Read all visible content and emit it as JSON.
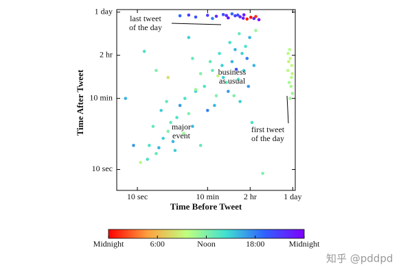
{
  "chart_data": {
    "type": "scatter",
    "log_x": true,
    "log_y": true,
    "xlabel": "Time Before Tweet",
    "ylabel": "Time After Tweet",
    "xlim": [
      3,
      100000
    ],
    "ylim": [
      3,
      100000
    ],
    "xticks": [
      {
        "value": 10,
        "label": "10 sec"
      },
      {
        "value": 600,
        "label": "10 min"
      },
      {
        "value": 7200,
        "label": "2 hr"
      },
      {
        "value": 86400,
        "label": "1 day"
      }
    ],
    "yticks": [
      {
        "value": 10,
        "label": "10 sec"
      },
      {
        "value": 600,
        "label": "10 min"
      },
      {
        "value": 7200,
        "label": "2 hr"
      },
      {
        "value": 86400,
        "label": "1 day"
      }
    ],
    "colormap": [
      "#ff0000",
      "#ffa040",
      "#c0ff80",
      "#40e0d0",
      "#3060ff",
      "#7f00ff"
    ],
    "clim": [
      0,
      24
    ],
    "cticks": [
      {
        "value": 0,
        "label": "Midnight"
      },
      {
        "value": 6,
        "label": "6:00"
      },
      {
        "value": 12,
        "label": "Noon"
      },
      {
        "value": 18,
        "label": "18:00"
      },
      {
        "value": 24,
        "label": "Midnight"
      }
    ],
    "annotations": [
      {
        "lines": [
          "last tweet",
          "of the day"
        ]
      },
      {
        "lines": [
          "business",
          "as usual"
        ]
      },
      {
        "lines": [
          "major",
          "event"
        ]
      },
      {
        "lines": [
          "first tweet",
          "of the day"
        ]
      }
    ],
    "series": [
      {
        "x": [
          20,
          30,
          45,
          60,
          80,
          25,
          100,
          150,
          40,
          70,
          120,
          200,
          18,
          35,
          55,
          90,
          160,
          250,
          12,
          300,
          500,
          800,
          1500,
          2500,
          3600,
          1000,
          2000,
          5000,
          700,
          1200,
          3000,
          6000,
          400,
          4000,
          1800,
          900,
          2200,
          6500,
          300,
          1400,
          3200,
          5500,
          250,
          7000,
          600,
          2800,
          4500,
          1100,
          3800,
          9000,
          8,
          15,
          30,
          200,
          8000,
          5,
          10000,
          60,
          400,
          15000,
          120,
          300,
          600,
          1000,
          1500,
          2000,
          3000,
          4000,
          5000,
          6000,
          7500,
          9000,
          12000,
          2500,
          800,
          1800,
          3500,
          4800,
          10000,
          200,
          65000,
          70000,
          75000,
          80000,
          85000,
          68000,
          72000,
          78000,
          82000,
          74000,
          66000,
          84000
        ],
        "y": [
          40,
          25,
          60,
          90,
          50,
          120,
          200,
          80,
          300,
          150,
          400,
          250,
          18,
          35,
          500,
          30,
          600,
          120,
          15,
          900,
          1200,
          3000,
          2000,
          5000,
          1800,
          700,
          900,
          3000,
          5000,
          8000,
          10000,
          6000,
          2500,
          500,
          1500,
          400,
          15000,
          1200,
          1000,
          4000,
          3200,
          12000,
          6000,
          20000,
          300,
          700,
          8000,
          2200,
          25000,
          4000,
          40,
          9000,
          3000,
          20000,
          150,
          600,
          30000,
          2000,
          40,
          8,
          70000,
          65000,
          72000,
          68000,
          75000,
          62000,
          70000,
          66000,
          74000,
          58000,
          64000,
          60000,
          56000,
          78000,
          60000,
          71000,
          73000,
          61000,
          67000,
          73000,
          3000,
          1500,
          6000,
          2000,
          800,
          5000,
          10000,
          1200,
          4000,
          600,
          8000,
          2500
        ],
        "c": [
          14,
          13,
          15,
          12,
          16,
          13,
          14,
          11,
          15,
          13,
          17,
          12,
          14,
          16,
          13,
          15,
          14,
          16,
          10,
          15,
          14,
          13,
          15,
          16,
          14,
          12,
          17,
          15,
          13,
          14,
          16,
          18,
          12,
          15,
          13,
          16,
          14,
          17,
          11,
          15,
          20,
          14,
          13,
          16,
          18,
          12,
          15,
          9,
          13,
          16,
          17,
          14,
          12,
          15,
          14,
          16,
          11,
          8,
          13,
          12,
          19,
          20,
          21,
          22,
          20,
          23,
          21,
          22,
          23,
          1,
          0.5,
          22,
          23.5,
          19,
          18,
          22,
          20,
          23,
          1.5,
          21,
          10,
          10.5,
          9.5,
          10,
          11,
          9,
          10,
          10.5,
          9.5,
          11,
          10,
          9
        ]
      }
    ],
    "watermark": "知乎 @pddpd"
  }
}
